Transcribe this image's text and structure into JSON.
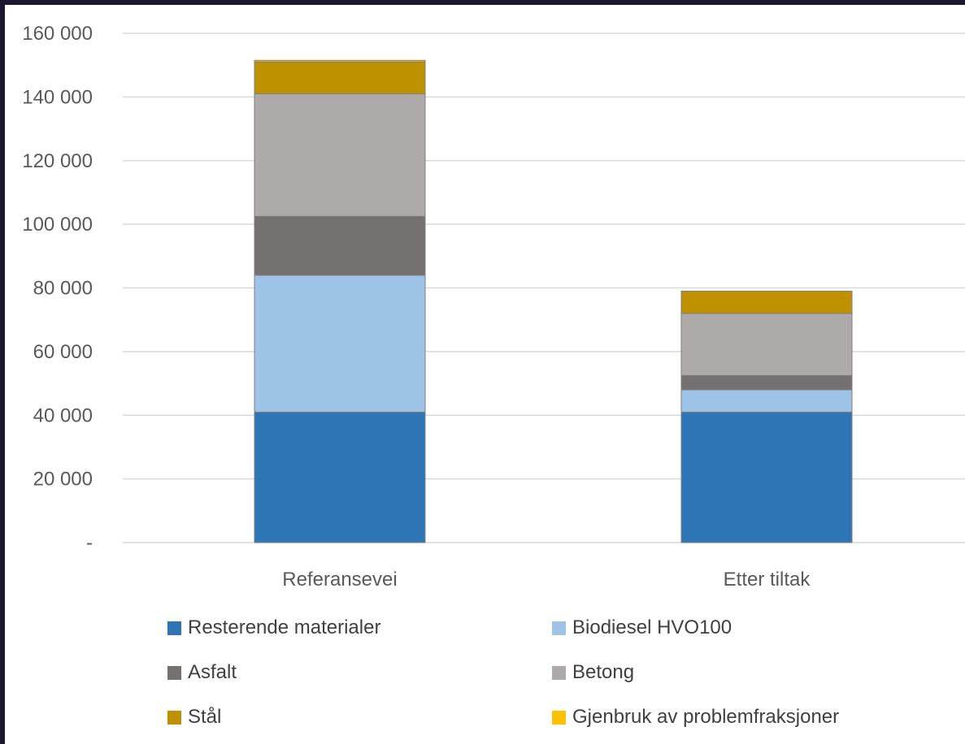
{
  "chart_data": {
    "type": "bar",
    "stacked": true,
    "categories": [
      "Referansevei",
      "Etter tiltak"
    ],
    "series": [
      {
        "name": "Resterende materialer",
        "color": "#2e75b6",
        "values": [
          41000,
          41000
        ]
      },
      {
        "name": "Biodiesel HVO100",
        "color": "#9dc3e6",
        "values": [
          43000,
          7000
        ]
      },
      {
        "name": "Asfalt",
        "color": "#767171",
        "values": [
          18500,
          4500
        ]
      },
      {
        "name": "Betong",
        "color": "#aeaaaa",
        "values": [
          38500,
          19500
        ]
      },
      {
        "name": "Stål",
        "color": "#bf9000",
        "values": [
          10000,
          7000
        ]
      },
      {
        "name": "Gjenbruk av problemfraksjoner",
        "color": "#ffc000",
        "values": [
          500,
          0
        ]
      }
    ],
    "ylim": [
      0,
      160000
    ],
    "yticks": [
      0,
      20000,
      40000,
      60000,
      80000,
      100000,
      120000,
      140000,
      160000
    ],
    "ytick_labels": [
      "-",
      "20 000",
      "40 000",
      "60 000",
      "80 000",
      "100 000",
      "120 000",
      "140 000",
      "160 000"
    ],
    "title": "",
    "xlabel": "",
    "ylabel": "",
    "grid": true,
    "legend_position": "bottom"
  }
}
